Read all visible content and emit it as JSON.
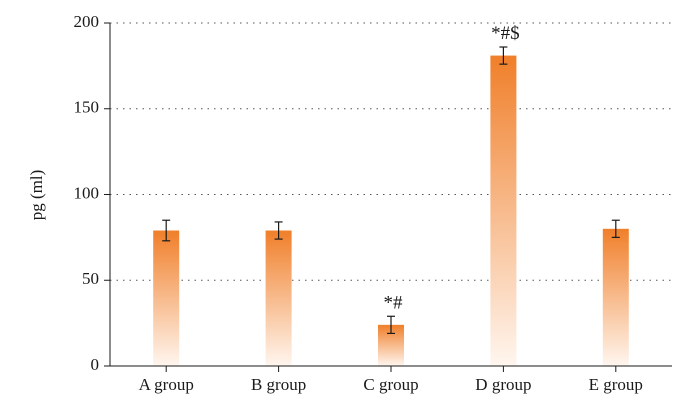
{
  "chart_data": {
    "type": "bar",
    "ylabel": "pg (ml)",
    "xlabel": "",
    "ylim": [
      0,
      200
    ],
    "yticks": [
      "0",
      "50",
      "100",
      "150",
      "200"
    ],
    "grid": "horizontal dotted",
    "categories": [
      "A group",
      "B group",
      "C group",
      "D group",
      "E group"
    ],
    "values": [
      79,
      79,
      24,
      181,
      80
    ],
    "errors": [
      6,
      5,
      5,
      5,
      5
    ],
    "annotations": [
      "",
      "",
      "*#",
      "*#$",
      ""
    ],
    "bar_color_top": "#f07f2a",
    "bar_color_bottom": "#fff6ef"
  }
}
